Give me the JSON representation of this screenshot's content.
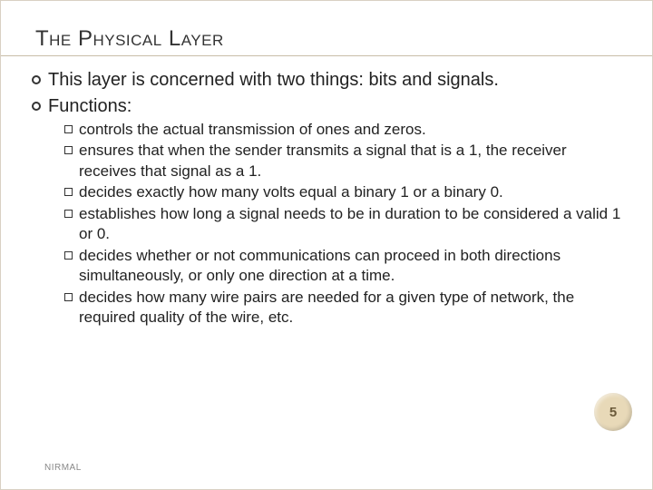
{
  "title": "The Physical Layer",
  "title_fontsize": 24,
  "title_color": "#333333",
  "bullets_lvl1": [
    "This layer is concerned with two things: bits and signals.",
    "Functions:"
  ],
  "lvl1_fontsize": 20,
  "lvl1_bullet_border": "#333333",
  "bullets_lvl2": [
    "controls the actual transmission of ones and zeros.",
    "ensures that when the sender transmits a signal that is a 1, the receiver receives that signal as a 1.",
    "decides exactly how many volts equal a binary 1 or a binary 0.",
    "establishes how long a signal needs to be in duration to be considered a valid 1 or 0.",
    "decides whether or not communications can proceed in both directions simultaneously, or only one direction at a time.",
    "decides how many wire pairs are needed for a given type of network, the required quality of the wire, etc."
  ],
  "lvl2_fontsize": 17,
  "lvl2_bullet_border": "#333333",
  "page_number": "5",
  "page_badge_bg": "#e8d9b8",
  "page_badge_color": "#6b5a3a",
  "footer_text": "NIRMAL",
  "footer_color": "#888888",
  "background_color": "#ffffff",
  "border_color": "#d9d0c3",
  "title_rule_color": "#c8bda8"
}
